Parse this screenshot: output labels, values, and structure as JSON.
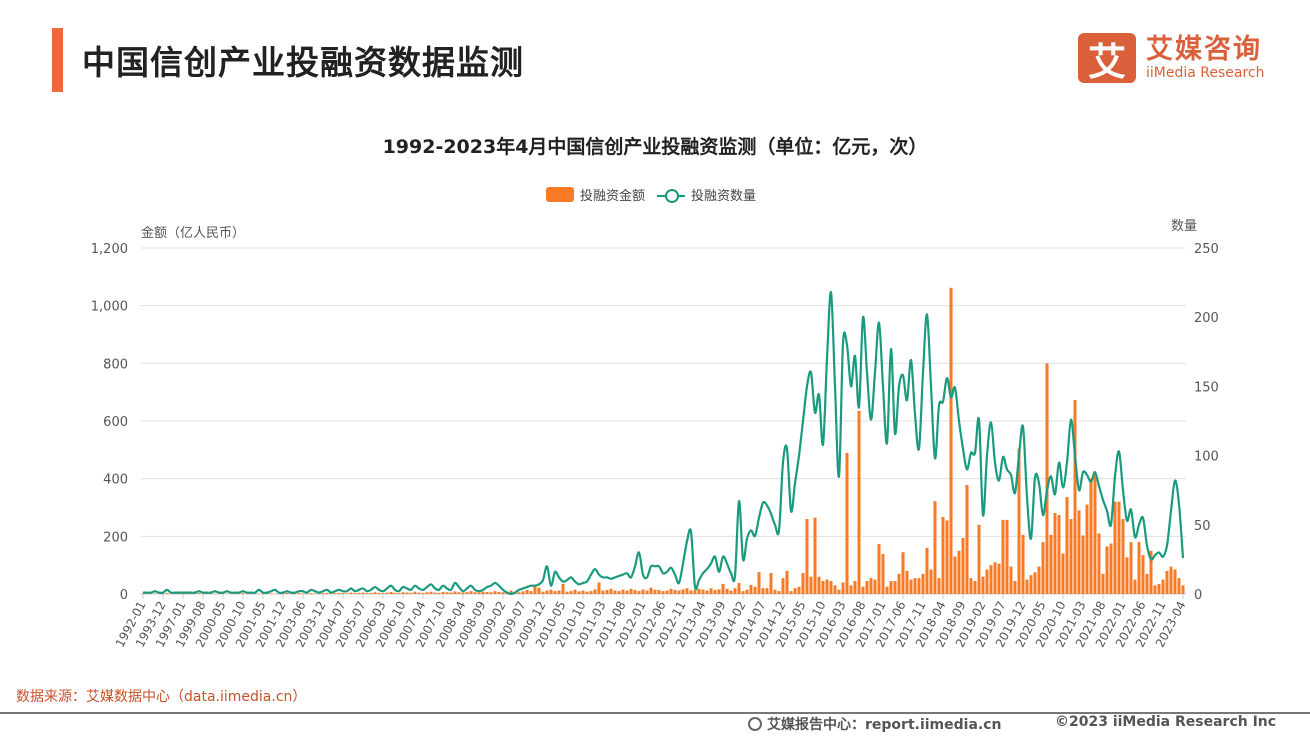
{
  "header": {
    "title": "中国信创产业投融资数据监测",
    "logo_cn": "艾媒咨询",
    "logo_en": "iiMedia Research",
    "logo_mark": "艾"
  },
  "footer": {
    "source": "数据来源：艾媒数据中心（data.iimedia.cn）",
    "report_center": "艾媒报告中心：report.iimedia.cn",
    "copyright": "©2023  iiMedia Research  Inc",
    "report_icon": "globe-cursor-icon"
  },
  "colors": {
    "accent": "#f0673a",
    "bar": "#f97a24",
    "line": "#1a9a7f",
    "logo": "#d9603b"
  },
  "chart_data": {
    "type": "bar+line",
    "title": "1992-2023年4月中国信创产业投融资监测（单位：亿元，次）",
    "ylabel_left": "金额（亿人民币）",
    "ylabel_right": "数量",
    "ylim_left": [
      0,
      1200
    ],
    "ylim_right": [
      0,
      250
    ],
    "yticks_left": [
      "0",
      "200",
      "400",
      "600",
      "800",
      "1,000",
      "1,200"
    ],
    "yticks_right": [
      "0",
      "50",
      "100",
      "150",
      "200",
      "250"
    ],
    "grid": true,
    "legend_position": "top-center",
    "x_tick_every": 5,
    "x_tick_labels": [
      "1992-01",
      "1993-12",
      "1997-01",
      "1999-08",
      "2000-05",
      "2000-10",
      "2001-05",
      "2001-12",
      "2003-06",
      "2003-12",
      "2004-07",
      "2005-07",
      "2006-03",
      "2006-10",
      "2007-04",
      "2007-10",
      "2008-04",
      "2008-09",
      "2009-02",
      "2009-07",
      "2009-12",
      "2010-05",
      "2010-10",
      "2011-03",
      "2011-08",
      "2012-01",
      "2012-06",
      "2012-11",
      "2013-04",
      "2013-09",
      "2014-02",
      "2014-07",
      "2014-12",
      "2015-05",
      "2015-10",
      "2016-03",
      "2016-08",
      "2017-01",
      "2017-06",
      "2017-11",
      "2018-04",
      "2018-09",
      "2019-02",
      "2019-07",
      "2019-12",
      "2020-05",
      "2020-10",
      "2021-03",
      "2021-08",
      "2022-01",
      "2022-06",
      "2022-11",
      "2023-04"
    ],
    "series": [
      {
        "name": "投融资金额",
        "type": "bar",
        "axis": "left",
        "values": [
          2,
          1,
          1,
          2,
          1,
          1,
          3,
          1,
          2,
          1,
          1,
          2,
          1,
          1,
          3,
          1,
          1,
          2,
          1,
          1,
          2,
          1,
          1,
          2,
          1,
          3,
          1,
          1,
          2,
          1,
          1,
          3,
          2,
          1,
          1,
          2,
          4,
          1,
          2,
          3,
          2,
          1,
          3,
          2,
          1,
          3,
          4,
          2,
          3,
          4,
          3,
          2,
          5,
          3,
          4,
          5,
          3,
          4,
          6,
          4,
          3,
          5,
          7,
          4,
          3,
          6,
          5,
          4,
          8,
          5,
          4,
          6,
          8,
          5,
          4,
          7,
          6,
          5,
          9,
          6,
          5,
          7,
          10,
          6,
          5,
          8,
          7,
          6,
          10,
          7,
          6,
          8,
          12,
          7,
          6,
          9,
          14,
          10,
          30,
          22,
          8,
          12,
          15,
          10,
          12,
          35,
          8,
          10,
          15,
          9,
          12,
          8,
          10,
          16,
          40,
          12,
          14,
          18,
          12,
          10,
          15,
          12,
          18,
          14,
          10,
          16,
          12,
          22,
          15,
          14,
          10,
          12,
          18,
          14,
          12,
          16,
          20,
          12,
          14,
          18,
          15,
          12,
          20,
          14,
          16,
          35,
          18,
          12,
          20,
          38,
          10,
          15,
          31,
          25,
          76,
          20,
          20,
          73,
          15,
          10,
          55,
          80,
          10,
          20,
          25,
          73,
          260,
          60,
          265,
          60,
          45,
          50,
          45,
          30,
          15,
          40,
          489,
          30,
          45,
          635,
          25,
          45,
          55,
          50,
          173,
          139,
          25,
          45,
          45,
          70,
          145,
          80,
          50,
          55,
          55,
          70,
          160,
          85,
          322,
          55,
          267,
          255,
          1062,
          130,
          150,
          194,
          378,
          55,
          45,
          240,
          60,
          85,
          100,
          110,
          105,
          257,
          257,
          95,
          45,
          505,
          205,
          50,
          65,
          75,
          95,
          180,
          800,
          205,
          281,
          274,
          140,
          336,
          260,
          673,
          290,
          203,
          310,
          400,
          415,
          210,
          70,
          165,
          175,
          320,
          320,
          260,
          127,
          180,
          50,
          180,
          135,
          70,
          150,
          30,
          35,
          50,
          80,
          95,
          85,
          55,
          30
        ]
      },
      {
        "name": "投融资数量",
        "type": "line",
        "axis": "right",
        "values": [
          1,
          1,
          1,
          2,
          1,
          1,
          3,
          1,
          1,
          1,
          1,
          1,
          1,
          1,
          2,
          1,
          1,
          1,
          2,
          1,
          1,
          2,
          1,
          1,
          1,
          2,
          1,
          1,
          1,
          3,
          1,
          1,
          2,
          3,
          1,
          1,
          2,
          1,
          1,
          2,
          2,
          1,
          3,
          2,
          1,
          2,
          3,
          1,
          2,
          3,
          2,
          2,
          4,
          2,
          3,
          4,
          2,
          3,
          5,
          3,
          2,
          4,
          6,
          3,
          2,
          5,
          4,
          3,
          6,
          4,
          3,
          5,
          7,
          4,
          3,
          6,
          4,
          3,
          8,
          5,
          2,
          4,
          6,
          3,
          2,
          3,
          5,
          6,
          8,
          6,
          3,
          1,
          0,
          1,
          3,
          4,
          5,
          6,
          6,
          7,
          10,
          20,
          6,
          16,
          12,
          9,
          10,
          12,
          9,
          7,
          8,
          9,
          14,
          18,
          14,
          12,
          12,
          11,
          12,
          13,
          14,
          15,
          12,
          20,
          30,
          14,
          12,
          20,
          20,
          20,
          15,
          16,
          19,
          14,
          8,
          22,
          38,
          45,
          5,
          10,
          15,
          18,
          22,
          27,
          16,
          27,
          22,
          15,
          13,
          67,
          25,
          40,
          46,
          42,
          55,
          66,
          64,
          58,
          50,
          46,
          95,
          105,
          60,
          80,
          100,
          125,
          150,
          160,
          131,
          144,
          108,
          170,
          218,
          150,
          85,
          181,
          180,
          150,
          172,
          135,
          200,
          160,
          126,
          160,
          196,
          150,
          109,
          177,
          116,
          150,
          158,
          140,
          169,
          130,
          105,
          160,
          202,
          150,
          98,
          136,
          139,
          156,
          142,
          149,
          125,
          105,
          90,
          102,
          102,
          126,
          57,
          100,
          124,
          95,
          82,
          99,
          90,
          86,
          73,
          100,
          121,
          70,
          40,
          84,
          80,
          57,
          75,
          85,
          72,
          95,
          77,
          95,
          126,
          100,
          75,
          88,
          86,
          81,
          88,
          78,
          68,
          60,
          50,
          85,
          103,
          75,
          53,
          61,
          41,
          50,
          55,
          35,
          25,
          28,
          30,
          27,
          35,
          60,
          82,
          65,
          26
        ]
      }
    ]
  }
}
